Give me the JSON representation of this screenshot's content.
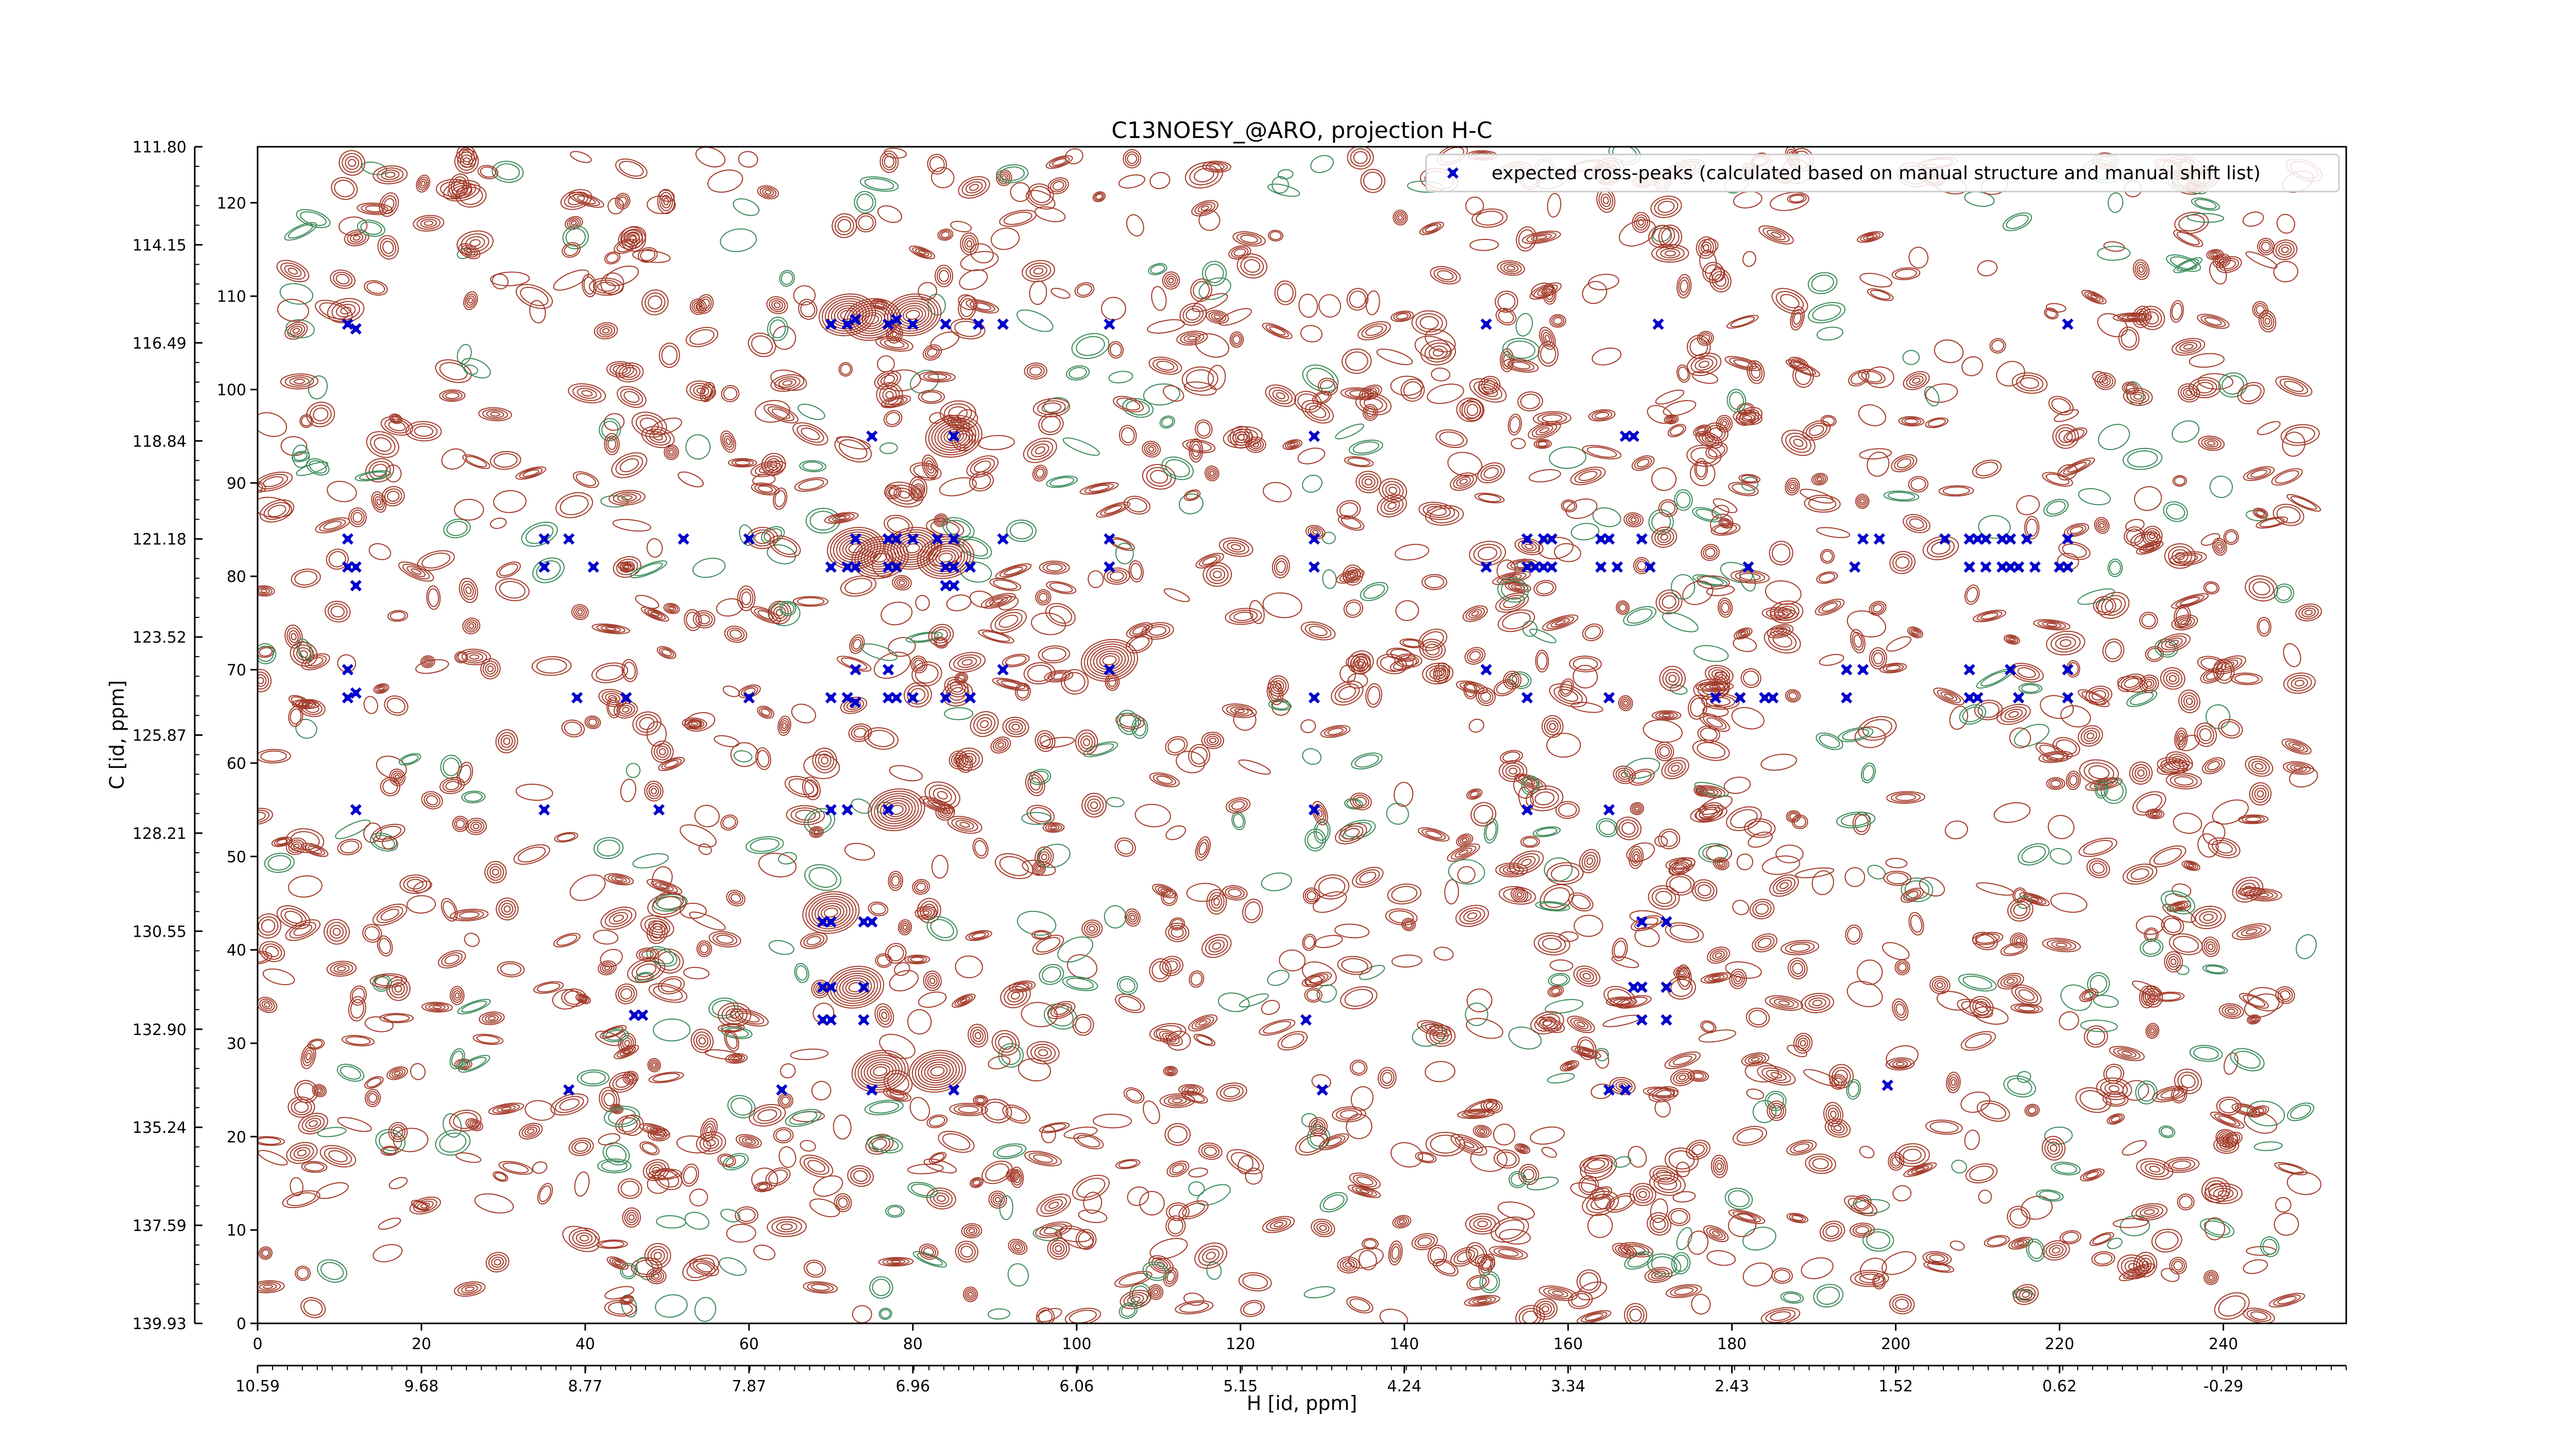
{
  "chart_data": {
    "type": "scatter",
    "title": "C13NOESY_@ARO, projection H-C",
    "xlabel": "H [id, ppm]",
    "ylabel": "C [id, ppm]",
    "xlim": [
      0,
      255
    ],
    "ylim": [
      0,
      126
    ],
    "x_ticks": [
      0,
      20,
      40,
      60,
      80,
      100,
      120,
      140,
      160,
      180,
      200,
      220,
      240
    ],
    "y_ticks": [
      0,
      10,
      20,
      30,
      40,
      50,
      60,
      70,
      80,
      90,
      100,
      110,
      120
    ],
    "x_ppm_labels": [
      {
        "at": 0,
        "label": "10.59"
      },
      {
        "at": 20,
        "label": "9.68"
      },
      {
        "at": 40,
        "label": "8.77"
      },
      {
        "at": 60,
        "label": "7.87"
      },
      {
        "at": 80,
        "label": "6.96"
      },
      {
        "at": 100,
        "label": "6.06"
      },
      {
        "at": 120,
        "label": "5.15"
      },
      {
        "at": 140,
        "label": "4.24"
      },
      {
        "at": 160,
        "label": "3.34"
      },
      {
        "at": 180,
        "label": "2.43"
      },
      {
        "at": 200,
        "label": "1.52"
      },
      {
        "at": 220,
        "label": "0.62"
      },
      {
        "at": 240,
        "label": "-0.29"
      }
    ],
    "y_ppm_labels": [
      {
        "at": 0,
        "label": "139.93"
      },
      {
        "at": 10.5,
        "label": "137.59"
      },
      {
        "at": 21,
        "label": "135.24"
      },
      {
        "at": 31.5,
        "label": "132.90"
      },
      {
        "at": 42,
        "label": "130.55"
      },
      {
        "at": 52.5,
        "label": "128.21"
      },
      {
        "at": 63,
        "label": "125.87"
      },
      {
        "at": 73.5,
        "label": "123.52"
      },
      {
        "at": 84,
        "label": "121.18"
      },
      {
        "at": 94.5,
        "label": "118.84"
      },
      {
        "at": 105,
        "label": "116.49"
      },
      {
        "at": 115.5,
        "label": "114.15"
      },
      {
        "at": 126,
        "label": "111.80"
      }
    ],
    "grid": false,
    "legend_position": "top-right",
    "series": [
      {
        "name": "expected cross-peaks (calculated based on manual structure and manual shift list)",
        "marker": "x",
        "color": "#0000cc",
        "points": [
          [
            11,
            107
          ],
          [
            12,
            106.5
          ],
          [
            70,
            107
          ],
          [
            72,
            107
          ],
          [
            73,
            107.5
          ],
          [
            77,
            107
          ],
          [
            78,
            107.5
          ],
          [
            80,
            107
          ],
          [
            84,
            107
          ],
          [
            88,
            107
          ],
          [
            91,
            107
          ],
          [
            104,
            107
          ],
          [
            150,
            107
          ],
          [
            171,
            107
          ],
          [
            221,
            107
          ],
          [
            75,
            95
          ],
          [
            85,
            95
          ],
          [
            129,
            95
          ],
          [
            167,
            95
          ],
          [
            168,
            95
          ],
          [
            11,
            84
          ],
          [
            35,
            84
          ],
          [
            38,
            84
          ],
          [
            52,
            84
          ],
          [
            60,
            84
          ],
          [
            73,
            84
          ],
          [
            77,
            84
          ],
          [
            78,
            84
          ],
          [
            80,
            84
          ],
          [
            83,
            84
          ],
          [
            85,
            84
          ],
          [
            91,
            84
          ],
          [
            104,
            84
          ],
          [
            129,
            84
          ],
          [
            155,
            84
          ],
          [
            157,
            84
          ],
          [
            158,
            84
          ],
          [
            164,
            84
          ],
          [
            165,
            84
          ],
          [
            169,
            84
          ],
          [
            196,
            84
          ],
          [
            198,
            84
          ],
          [
            206,
            84
          ],
          [
            209,
            84
          ],
          [
            210,
            84
          ],
          [
            211,
            84
          ],
          [
            213,
            84
          ],
          [
            214,
            84
          ],
          [
            216,
            84
          ],
          [
            221,
            84
          ],
          [
            11,
            81
          ],
          [
            12,
            81
          ],
          [
            35,
            81
          ],
          [
            41,
            81
          ],
          [
            70,
            81
          ],
          [
            72,
            81
          ],
          [
            73,
            81
          ],
          [
            77,
            81
          ],
          [
            78,
            81
          ],
          [
            84,
            81
          ],
          [
            85,
            81
          ],
          [
            87,
            81
          ],
          [
            104,
            81
          ],
          [
            129,
            81
          ],
          [
            150,
            81
          ],
          [
            155,
            81
          ],
          [
            156,
            81
          ],
          [
            157,
            81
          ],
          [
            158,
            81
          ],
          [
            164,
            81
          ],
          [
            166,
            81
          ],
          [
            170,
            81
          ],
          [
            182,
            81
          ],
          [
            195,
            81
          ],
          [
            209,
            81
          ],
          [
            211,
            81
          ],
          [
            213,
            81
          ],
          [
            214,
            81
          ],
          [
            215,
            81
          ],
          [
            217,
            81
          ],
          [
            220,
            81
          ],
          [
            221,
            81
          ],
          [
            12,
            79
          ],
          [
            84,
            79
          ],
          [
            85,
            79
          ],
          [
            11,
            70
          ],
          [
            73,
            70
          ],
          [
            77,
            70
          ],
          [
            91,
            70
          ],
          [
            104,
            70
          ],
          [
            150,
            70
          ],
          [
            194,
            70
          ],
          [
            196,
            70
          ],
          [
            209,
            70
          ],
          [
            214,
            70
          ],
          [
            221,
            70
          ],
          [
            11,
            67
          ],
          [
            12,
            67.5
          ],
          [
            39,
            67
          ],
          [
            45,
            67
          ],
          [
            60,
            67
          ],
          [
            70,
            67
          ],
          [
            72,
            67
          ],
          [
            73,
            66.5
          ],
          [
            77,
            67
          ],
          [
            78,
            67
          ],
          [
            80,
            67
          ],
          [
            84,
            67
          ],
          [
            87,
            67
          ],
          [
            129,
            67
          ],
          [
            155,
            67
          ],
          [
            165,
            67
          ],
          [
            178,
            67
          ],
          [
            181,
            67
          ],
          [
            184,
            67
          ],
          [
            185,
            67
          ],
          [
            194,
            67
          ],
          [
            209,
            67
          ],
          [
            210,
            67
          ],
          [
            215,
            67
          ],
          [
            221,
            67
          ],
          [
            12,
            55
          ],
          [
            35,
            55
          ],
          [
            49,
            55
          ],
          [
            70,
            55
          ],
          [
            72,
            55
          ],
          [
            77,
            55
          ],
          [
            129,
            55
          ],
          [
            155,
            55
          ],
          [
            165,
            55
          ],
          [
            69,
            43
          ],
          [
            70,
            43
          ],
          [
            74,
            43
          ],
          [
            75,
            43
          ],
          [
            169,
            43
          ],
          [
            172,
            43
          ],
          [
            69,
            36
          ],
          [
            70,
            36
          ],
          [
            74,
            36
          ],
          [
            168,
            36
          ],
          [
            169,
            36
          ],
          [
            172,
            36
          ],
          [
            69,
            32.5
          ],
          [
            70,
            32.5
          ],
          [
            74,
            32.5
          ],
          [
            128,
            32.5
          ],
          [
            169,
            32.5
          ],
          [
            172,
            32.5
          ],
          [
            46,
            33
          ],
          [
            47,
            33
          ],
          [
            38,
            25
          ],
          [
            64,
            25
          ],
          [
            75,
            25
          ],
          [
            85,
            25
          ],
          [
            130,
            25
          ],
          [
            165,
            25
          ],
          [
            167,
            25
          ],
          [
            199,
            25.5
          ]
        ]
      }
    ]
  },
  "contour_colors": {
    "positive": "#a33b2a",
    "negative": "#3c8a5a",
    "marker": "#0000cc"
  }
}
